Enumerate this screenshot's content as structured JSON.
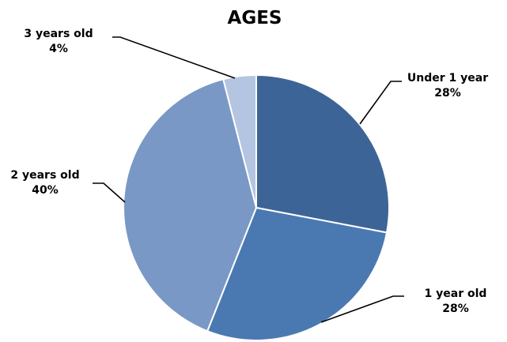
{
  "chart_data": {
    "type": "pie",
    "title": "AGES",
    "labels": [
      "Under 1 year",
      "1 year old",
      "2 years old",
      "3 years old"
    ],
    "values": [
      28,
      28,
      40,
      4
    ],
    "value_labels": [
      "28%",
      "28%",
      "40%",
      "4%"
    ],
    "colors": [
      "#3d6496",
      "#4a79b2",
      "#7a98c5",
      "#b4c5e1"
    ],
    "start_angle_deg": 0,
    "direction": "clockwise",
    "legend": "none"
  }
}
